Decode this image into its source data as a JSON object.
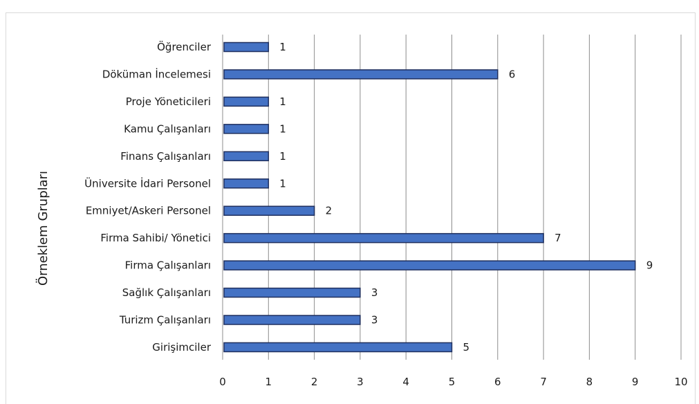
{
  "chart_data": {
    "type": "bar",
    "orientation": "horizontal",
    "title": "",
    "xlabel": "",
    "ylabel": "Örneklem Grupları",
    "xlim": [
      0,
      10
    ],
    "xticks": [
      0,
      1,
      2,
      3,
      4,
      5,
      6,
      7,
      8,
      9,
      10
    ],
    "grid": "vertical",
    "categories": [
      "Öğrenciler",
      "Döküman İncelemesi",
      "Proje Yöneticileri",
      "Kamu Çalışanları",
      "Finans Çalışanları",
      "Üniversite İdari Personel",
      "Emniyet/Askeri Personel",
      "Firma Sahibi/ Yönetici",
      "Firma Çalışanları",
      "Sağlık Çalışanları",
      "Turizm Çalışanları",
      "Girişimciler"
    ],
    "values": [
      1,
      6,
      1,
      1,
      1,
      1,
      2,
      7,
      9,
      3,
      3,
      5
    ],
    "colors": {
      "bar_fill": "#4472c4",
      "bar_border": "#1f2f5e",
      "grid": "#8c8c8c"
    }
  }
}
